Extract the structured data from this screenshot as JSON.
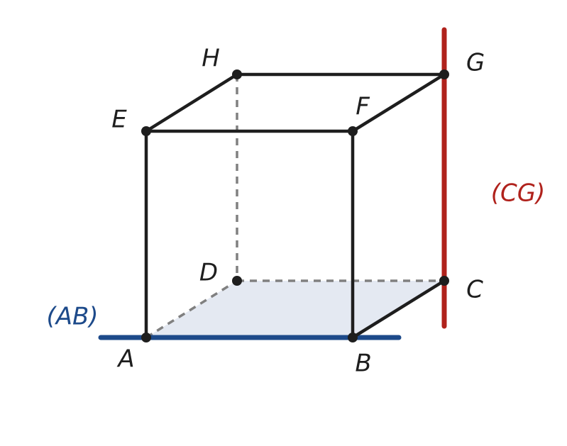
{
  "nodes": [
    {
      "label": "A"
    },
    {
      "label": "B"
    },
    {
      "label": "C"
    },
    {
      "label": "D"
    },
    {
      "label": "E"
    },
    {
      "label": "F"
    },
    {
      "label": "G"
    },
    {
      "label": "H"
    }
  ],
  "lines": [
    {
      "label": "(AB)"
    },
    {
      "label": "(CG)"
    }
  ]
}
